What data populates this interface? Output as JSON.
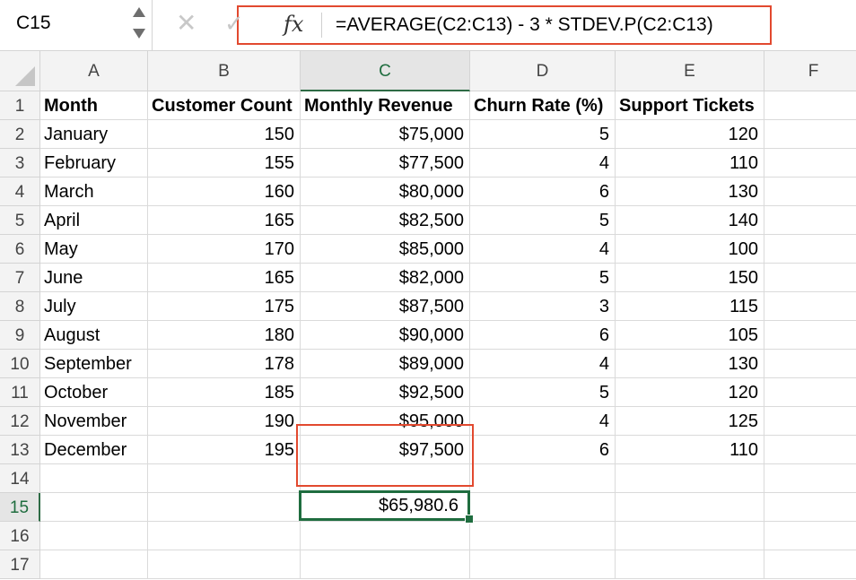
{
  "formula_bar": {
    "name_box": "C15",
    "fx_label": "fx",
    "cancel_glyph": "✕",
    "enter_glyph": "✓",
    "formula": "=AVERAGE(C2:C13) - 3 * STDEV.P(C2:C13)"
  },
  "columns": [
    "A",
    "B",
    "C",
    "D",
    "E",
    "F"
  ],
  "rows": [
    "1",
    "2",
    "3",
    "4",
    "5",
    "6",
    "7",
    "8",
    "9",
    "10",
    "11",
    "12",
    "13",
    "14",
    "15",
    "16",
    "17"
  ],
  "header_row": [
    "Month",
    "Customer Count",
    "Monthly Revenue",
    "Churn Rate (%)",
    "Support Tickets"
  ],
  "data_rows": [
    [
      "January",
      "150",
      "$75,000",
      "5",
      "120"
    ],
    [
      "February",
      "155",
      "$77,500",
      "4",
      "110"
    ],
    [
      "March",
      "160",
      "$80,000",
      "6",
      "130"
    ],
    [
      "April",
      "165",
      "$82,500",
      "5",
      "140"
    ],
    [
      "May",
      "170",
      "$85,000",
      "4",
      "100"
    ],
    [
      "June",
      "165",
      "$82,000",
      "5",
      "150"
    ],
    [
      "July",
      "175",
      "$87,500",
      "3",
      "115"
    ],
    [
      "August",
      "180",
      "$90,000",
      "6",
      "105"
    ],
    [
      "September",
      "178",
      "$89,000",
      "4",
      "130"
    ],
    [
      "October",
      "185",
      "$92,500",
      "5",
      "120"
    ],
    [
      "November",
      "190",
      "$95,000",
      "4",
      "125"
    ],
    [
      "December",
      "195",
      "$97,500",
      "6",
      "110"
    ]
  ],
  "active_cell_value": "$65,980.6",
  "colors": {
    "selection": "#1f6d3f",
    "highlight": "#e2492f"
  },
  "icons": [
    "stepper-icon",
    "cancel-icon",
    "enter-icon",
    "fx-icon"
  ]
}
